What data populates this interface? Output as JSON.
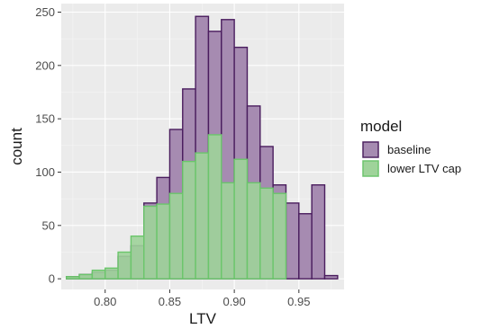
{
  "chart_data": {
    "type": "histogram",
    "xlabel": "LTV",
    "ylabel": "count",
    "xlim": [
      0.766,
      0.985
    ],
    "ylim": [
      -10,
      258
    ],
    "x_ticks": [
      0.8,
      0.85,
      0.9,
      0.95
    ],
    "x_tick_labels": [
      "0.80",
      "0.85",
      "0.90",
      "0.95"
    ],
    "y_ticks": [
      0,
      50,
      100,
      150,
      200,
      250
    ],
    "y_tick_labels": [
      "0",
      "50",
      "100",
      "150",
      "200",
      "250"
    ],
    "bin_width": 0.01,
    "bin_starts": [
      0.77,
      0.78,
      0.79,
      0.8,
      0.81,
      0.82,
      0.83,
      0.84,
      0.85,
      0.86,
      0.87,
      0.88,
      0.89,
      0.9,
      0.91,
      0.92,
      0.93,
      0.94,
      0.95,
      0.96,
      0.97
    ],
    "grid": true,
    "background": "#ebebeb",
    "legend": {
      "title": "model",
      "position": "right"
    },
    "series": [
      {
        "name": "baseline",
        "fill": "#a68bb1",
        "stroke": "#4a1d5e",
        "values": [
          2,
          4,
          6,
          8,
          21,
          31,
          71,
          95,
          140,
          178,
          246,
          232,
          243,
          217,
          162,
          124,
          88,
          71,
          61,
          88,
          3
        ]
      },
      {
        "name": "lower LTV cap",
        "fill": "#9fd39a",
        "stroke": "#6bc66b",
        "values": [
          2,
          4,
          8,
          10,
          25,
          40,
          68,
          70,
          80,
          110,
          118,
          135,
          90,
          112,
          90,
          85,
          80,
          0,
          0,
          0,
          0
        ]
      }
    ]
  }
}
